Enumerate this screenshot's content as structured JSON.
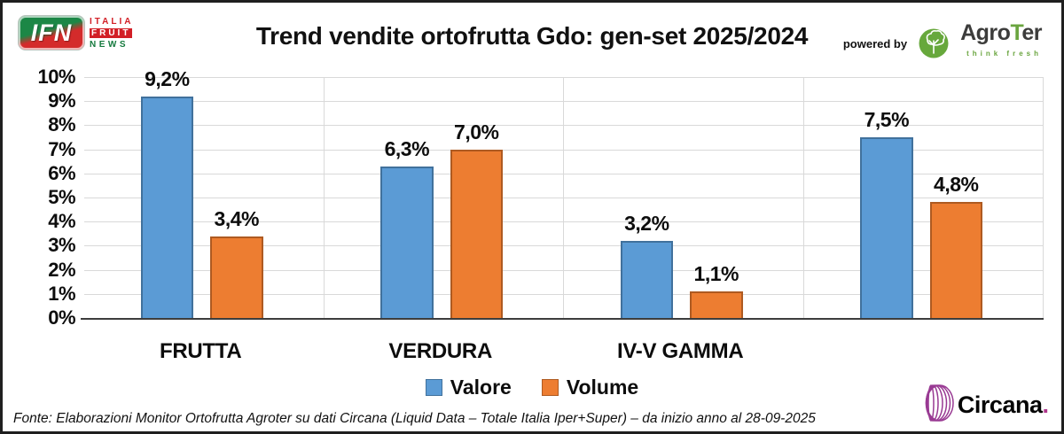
{
  "header": {
    "title": "Trend vendite ortofrutta Gdo: gen-set 2025/2024",
    "powered_by": "powered by",
    "ifn": {
      "initials": "IFN",
      "italia": "ITALIA",
      "fruit": "FRUIT",
      "news": "NEWS"
    },
    "agroter": {
      "agro": "Agro",
      "t": "T",
      "er": "er",
      "tagline": "think fresh"
    }
  },
  "chart_data": {
    "type": "bar",
    "title": "Trend vendite ortofrutta Gdo: gen-set 2025/2024",
    "categories": [
      "FRUTTA",
      "VERDURA",
      "IV-V GAMMA",
      ""
    ],
    "series": [
      {
        "name": "Valore",
        "color": "#5B9BD5",
        "border": "#41719C",
        "values": [
          9.2,
          6.3,
          3.2,
          7.5
        ],
        "labels": [
          "9,2%",
          "6,3%",
          "3,2%",
          "7,5%"
        ]
      },
      {
        "name": "Volume",
        "color": "#ED7D31",
        "border": "#AE5A21",
        "values": [
          3.4,
          7.0,
          1.1,
          4.8
        ],
        "labels": [
          "3,4%",
          "7,0%",
          "1,1%",
          "4,8%"
        ]
      }
    ],
    "ylim": [
      0,
      10
    ],
    "yticks": [
      "0%",
      "1%",
      "2%",
      "3%",
      "4%",
      "5%",
      "6%",
      "7%",
      "8%",
      "9%",
      "10%"
    ],
    "grid": true,
    "legend_position": "bottom"
  },
  "footer": {
    "source": "Fonte: Elaborazioni Monitor Ortofrutta Agroter su dati Circana (Liquid Data – Totale Italia Iper+Super) –  da inizio anno al 28-09-2025"
  },
  "circana": {
    "name": "Circana",
    "dot": "."
  }
}
